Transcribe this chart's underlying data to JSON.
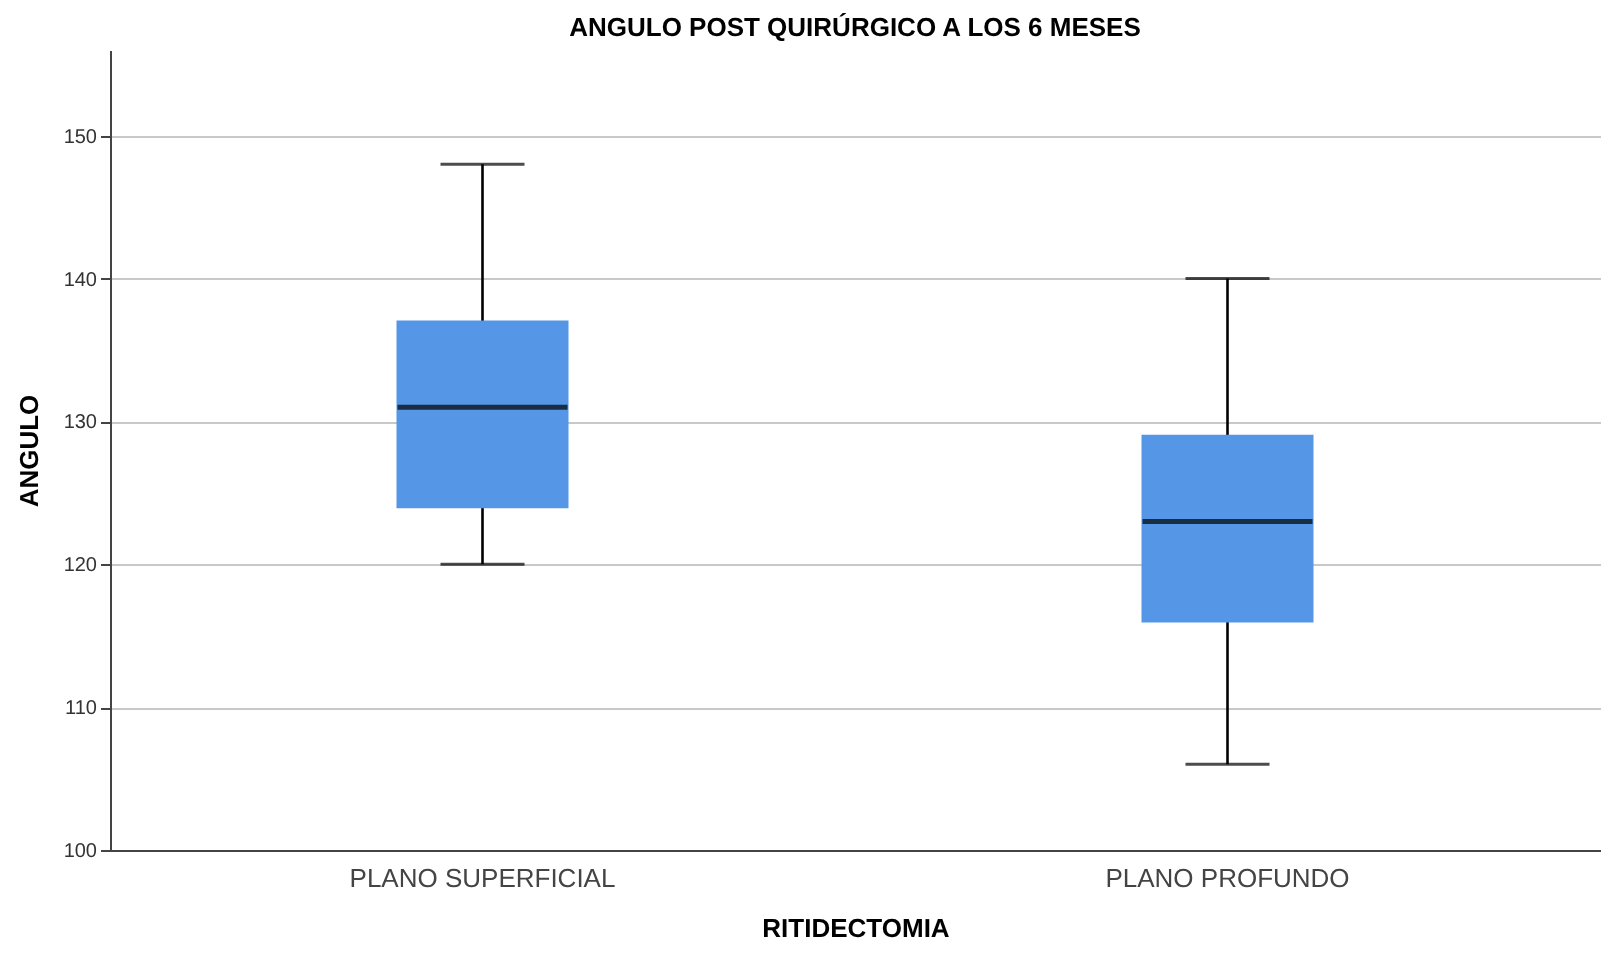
{
  "chart_data": {
    "type": "box",
    "title": "ANGULO POST QUIRÚRGICO A LOS 6 MESES",
    "xlabel": "RITIDECTOMIA",
    "ylabel": "ANGULO",
    "categories": [
      "PLANO SUPERFICIAL",
      "PLANO PROFUNDO"
    ],
    "series": [
      {
        "color": "#5596e6",
        "boxes": [
          {
            "low": 120,
            "q1": 124,
            "median": 131,
            "q3": 137,
            "high": 148
          },
          {
            "low": 106,
            "q1": 116,
            "median": 123,
            "q3": 129,
            "high": 140
          }
        ]
      }
    ],
    "ylim": [
      100,
      156
    ],
    "yticks": [
      100,
      110,
      120,
      130,
      140,
      150
    ],
    "grid": "y"
  }
}
